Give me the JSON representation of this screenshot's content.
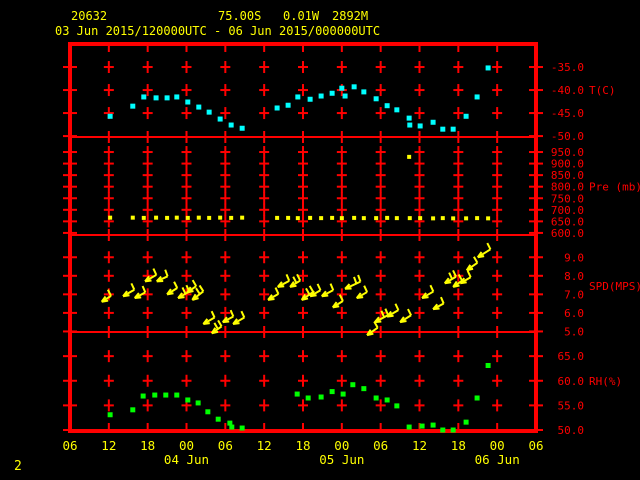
{
  "header": {
    "station_id": "20632",
    "latitude": "75.00S",
    "longitude": "0.01W",
    "elevation": "2892M",
    "period": "03 Jun 2015/120000UTC - 06 Jun 2015/000000UTC"
  },
  "footer": {
    "page_number": "2"
  },
  "colors": {
    "background": "#000000",
    "grid": "#ff0000",
    "axis_label": "#ff0000",
    "header_text": "#ffff00",
    "x_label": "#ffff00",
    "temperature": "#00ffff",
    "pressure": "#ffff00",
    "wind": "#ffff00",
    "humidity": "#00ff00"
  },
  "chart_data": {
    "type": "scatter",
    "title": "20632  75.00S  0.01W  2892M",
    "subtitle": "03 Jun 2015/120000UTC - 06 Jun 2015/000000UTC",
    "grid": "red plus-mark lattice, 4 stacked panels",
    "legend_position": "right-axis unit labels",
    "x_axis": {
      "start": "03 Jun 2015 06UTC",
      "end": "06 Jun 2015 06UTC",
      "tick_interval_hours": 6,
      "hour_labels": [
        "06",
        "12",
        "18",
        "00",
        "06",
        "12",
        "18",
        "00",
        "06",
        "12",
        "18",
        "00",
        "06"
      ],
      "date_labels": [
        {
          "label": "04 Jun",
          "tick": 3
        },
        {
          "label": "05 Jun",
          "tick": 7
        },
        {
          "label": "06 Jun",
          "tick": 11
        }
      ]
    },
    "panels": [
      {
        "name": "temperature",
        "type": "scatter",
        "ylabel": "T(C)",
        "ylabel_at": -40,
        "yticks": [
          -35.0,
          -40.0,
          -45.0,
          -50.0
        ],
        "ylim": [
          -50.2,
          -30.0
        ],
        "points": [
          [
            6.2,
            -45.7
          ],
          [
            9.7,
            -43.5
          ],
          [
            11.4,
            -41.5
          ],
          [
            13.3,
            -41.7
          ],
          [
            15.0,
            -41.7
          ],
          [
            16.5,
            -41.5
          ],
          [
            18.2,
            -42.6
          ],
          [
            19.9,
            -43.7
          ],
          [
            21.5,
            -44.8
          ],
          [
            23.2,
            -46.3
          ],
          [
            24.9,
            -47.6
          ],
          [
            26.6,
            -48.3
          ],
          [
            32.0,
            -43.9
          ],
          [
            33.7,
            -43.3
          ],
          [
            35.2,
            -41.5
          ],
          [
            37.1,
            -42.0
          ],
          [
            38.8,
            -41.3
          ],
          [
            40.5,
            -40.7
          ],
          [
            42.0,
            -39.6
          ],
          [
            42.5,
            -41.3
          ],
          [
            43.9,
            -39.3
          ],
          [
            45.4,
            -40.4
          ],
          [
            47.3,
            -41.9
          ],
          [
            49.0,
            -43.4
          ],
          [
            50.5,
            -44.3
          ],
          [
            52.4,
            -46.1
          ],
          [
            52.5,
            -47.6
          ],
          [
            54.1,
            -47.8
          ],
          [
            56.1,
            -47.0
          ],
          [
            57.6,
            -48.5
          ],
          [
            59.2,
            -48.5
          ],
          [
            61.2,
            -45.7
          ],
          [
            62.9,
            -41.5
          ],
          [
            64.6,
            -35.2
          ]
        ]
      },
      {
        "name": "pressure",
        "type": "scatter",
        "ylabel": "Pre (mb)",
        "ylabel_at": 800,
        "yticks": [
          950.0,
          900.0,
          850.0,
          800.0,
          750.0,
          700.0,
          650.0,
          600.0
        ],
        "ylim": [
          591,
          1015
        ],
        "points": [
          [
            6.2,
            666
          ],
          [
            9.7,
            666
          ],
          [
            11.4,
            665
          ],
          [
            13.3,
            666
          ],
          [
            15.0,
            665
          ],
          [
            16.5,
            666
          ],
          [
            18.2,
            665
          ],
          [
            19.9,
            666
          ],
          [
            21.5,
            665
          ],
          [
            23.2,
            666
          ],
          [
            24.9,
            665
          ],
          [
            26.6,
            666
          ],
          [
            32.0,
            665
          ],
          [
            33.7,
            665
          ],
          [
            35.2,
            664
          ],
          [
            37.1,
            665
          ],
          [
            38.8,
            664
          ],
          [
            40.5,
            665
          ],
          [
            42.0,
            664
          ],
          [
            43.9,
            665
          ],
          [
            45.4,
            664
          ],
          [
            47.3,
            664
          ],
          [
            49.0,
            665
          ],
          [
            50.5,
            664
          ],
          [
            52.4,
            929
          ],
          [
            52.5,
            664
          ],
          [
            54.1,
            664
          ],
          [
            56.1,
            663
          ],
          [
            57.6,
            664
          ],
          [
            59.2,
            663
          ],
          [
            61.2,
            663
          ],
          [
            62.9,
            664
          ],
          [
            64.6,
            663
          ]
        ]
      },
      {
        "name": "wind_speed",
        "type": "wind-barb",
        "ylabel": "SPD(MPS)",
        "ylabel_at": 7.45,
        "yticks": [
          9.0,
          8.0,
          7.0,
          6.0,
          5.0
        ],
        "ylim": [
          4.97,
          10.2
        ],
        "barb_format": "[hours_from_start, speed_mps, shaft_len_px, feathers, angle_deg]",
        "barbs": [
          [
            4.9,
            6.6,
            11,
            1,
            32
          ],
          [
            8.2,
            6.9,
            13,
            1,
            30
          ],
          [
            10.0,
            6.8,
            12,
            1,
            28
          ],
          [
            11.6,
            7.7,
            13,
            1,
            30
          ],
          [
            13.4,
            7.7,
            12,
            1,
            25
          ],
          [
            15.0,
            7.0,
            12,
            1,
            32
          ],
          [
            16.7,
            6.8,
            13,
            2,
            30
          ],
          [
            18.1,
            7.1,
            11,
            1,
            35
          ],
          [
            18.9,
            6.7,
            14,
            2,
            38
          ],
          [
            20.6,
            5.4,
            13,
            1,
            30
          ],
          [
            21.9,
            4.9,
            12,
            2,
            35
          ],
          [
            23.6,
            5.5,
            12,
            1,
            28
          ],
          [
            25.2,
            5.4,
            13,
            1,
            30
          ],
          [
            30.6,
            6.7,
            12,
            1,
            30
          ],
          [
            32.1,
            7.4,
            13,
            1,
            28
          ],
          [
            34.0,
            7.4,
            12,
            2,
            32
          ],
          [
            35.8,
            6.7,
            14,
            2,
            35
          ],
          [
            37.1,
            6.9,
            12,
            1,
            30
          ],
          [
            38.9,
            6.9,
            13,
            1,
            28
          ],
          [
            40.6,
            6.3,
            12,
            1,
            32
          ],
          [
            42.5,
            7.3,
            17,
            2,
            25
          ],
          [
            44.3,
            6.8,
            12,
            1,
            30
          ],
          [
            45.9,
            4.8,
            13,
            1,
            35
          ],
          [
            47.1,
            5.5,
            15,
            2,
            28
          ],
          [
            49.0,
            5.8,
            13,
            1,
            30
          ],
          [
            51.0,
            5.5,
            13,
            1,
            32
          ],
          [
            54.4,
            6.8,
            13,
            1,
            30
          ],
          [
            56.1,
            6.2,
            12,
            1,
            28
          ],
          [
            57.9,
            7.6,
            13,
            2,
            30
          ],
          [
            59.2,
            7.4,
            11,
            1,
            35
          ],
          [
            60.3,
            7.6,
            12,
            1,
            30
          ],
          [
            61.3,
            8.3,
            13,
            1,
            35
          ],
          [
            63.0,
            9.0,
            15,
            1,
            32
          ]
        ]
      },
      {
        "name": "relative_humidity",
        "type": "scatter",
        "ylabel": "RH(%)",
        "ylabel_at": 60,
        "yticks": [
          65.0,
          60.0,
          55.0,
          50.0
        ],
        "ylim": [
          49.8,
          69.9
        ],
        "points": [
          [
            6.2,
            53.1
          ],
          [
            9.7,
            54.1
          ],
          [
            11.3,
            56.9
          ],
          [
            13.1,
            57.1
          ],
          [
            14.8,
            57.1
          ],
          [
            16.5,
            57.1
          ],
          [
            18.2,
            56.1
          ],
          [
            19.8,
            55.5
          ],
          [
            21.3,
            53.7
          ],
          [
            22.9,
            52.2
          ],
          [
            24.7,
            51.4
          ],
          [
            25.0,
            50.6
          ],
          [
            26.6,
            50.4
          ],
          [
            35.1,
            57.3
          ],
          [
            36.8,
            56.5
          ],
          [
            38.8,
            56.7
          ],
          [
            40.5,
            57.8
          ],
          [
            42.2,
            57.3
          ],
          [
            43.7,
            59.2
          ],
          [
            45.4,
            58.4
          ],
          [
            47.3,
            56.5
          ],
          [
            49.0,
            56.1
          ],
          [
            50.5,
            54.9
          ],
          [
            52.4,
            50.6
          ],
          [
            54.4,
            50.8
          ],
          [
            56.1,
            51.0
          ],
          [
            57.6,
            50.0
          ],
          [
            59.2,
            50.0
          ],
          [
            61.2,
            51.6
          ],
          [
            62.9,
            56.5
          ],
          [
            64.6,
            63.1
          ]
        ]
      }
    ]
  }
}
